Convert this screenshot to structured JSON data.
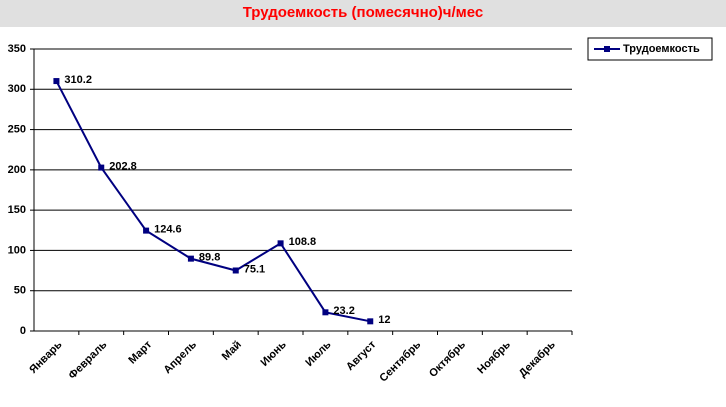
{
  "chart_data": {
    "type": "line",
    "title": "Трудоемкость (помесячно)ч/мес",
    "categories": [
      "Январь",
      "Февраль",
      "Март",
      "Апрель",
      "Май",
      "Июнь",
      "Июль",
      "Август",
      "Сентябрь",
      "Октябрь",
      "Ноябрь",
      "Декабрь"
    ],
    "series": [
      {
        "name": "Трудоемкость",
        "color": "#000080",
        "values": [
          310.2,
          202.8,
          124.6,
          89.8,
          75.1,
          108.8,
          23.2,
          12,
          null,
          null,
          null,
          null
        ]
      }
    ],
    "ylim": [
      0,
      350
    ],
    "yticks": [
      0,
      50,
      100,
      150,
      200,
      250,
      300,
      350
    ],
    "grid": true,
    "legend": "top-right",
    "title_color": "#ff0000"
  }
}
